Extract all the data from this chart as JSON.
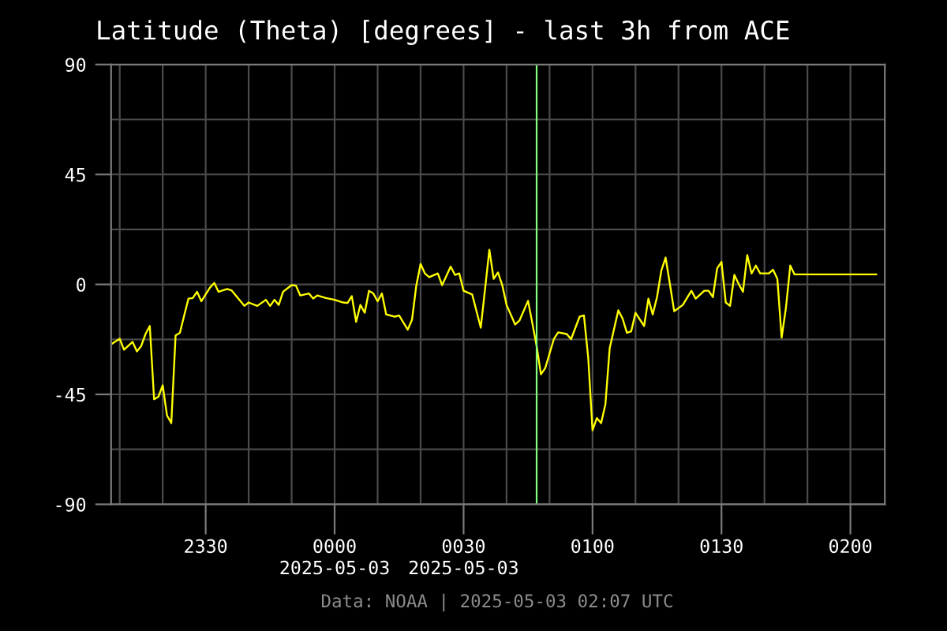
{
  "chart_data": {
    "type": "line",
    "title": "Latitude (Theta) [degrees] - last 3h from ACE",
    "x": [
      "2025-05-02T23:08",
      "2025-05-02T23:10",
      "2025-05-02T23:11",
      "2025-05-02T23:13",
      "2025-05-02T23:14",
      "2025-05-02T23:15",
      "2025-05-02T23:16",
      "2025-05-02T23:17",
      "2025-05-02T23:18",
      "2025-05-02T23:19",
      "2025-05-02T23:20",
      "2025-05-02T23:21",
      "2025-05-02T23:22",
      "2025-05-02T23:23",
      "2025-05-02T23:24",
      "2025-05-02T23:25",
      "2025-05-02T23:26",
      "2025-05-02T23:27",
      "2025-05-02T23:28",
      "2025-05-02T23:29",
      "2025-05-02T23:31",
      "2025-05-02T23:32",
      "2025-05-02T23:33",
      "2025-05-02T23:35",
      "2025-05-02T23:36",
      "2025-05-02T23:39",
      "2025-05-02T23:40",
      "2025-05-02T23:42",
      "2025-05-02T23:44",
      "2025-05-02T23:45",
      "2025-05-02T23:46",
      "2025-05-02T23:47",
      "2025-05-02T23:48",
      "2025-05-02T23:50",
      "2025-05-02T23:51",
      "2025-05-02T23:52",
      "2025-05-02T23:54",
      "2025-05-02T23:55",
      "2025-05-02T23:56",
      "2025-05-02T23:58",
      "2025-05-03T00:00",
      "2025-05-03T00:02",
      "2025-05-03T00:03",
      "2025-05-03T00:04",
      "2025-05-03T00:05",
      "2025-05-03T00:06",
      "2025-05-03T00:07",
      "2025-05-03T00:08",
      "2025-05-03T00:09",
      "2025-05-03T00:10",
      "2025-05-03T00:11",
      "2025-05-03T00:12",
      "2025-05-03T00:14",
      "2025-05-03T00:15",
      "2025-05-03T00:17",
      "2025-05-03T00:18",
      "2025-05-03T00:19",
      "2025-05-03T00:20",
      "2025-05-03T00:21",
      "2025-05-03T00:22",
      "2025-05-03T00:24",
      "2025-05-03T00:25",
      "2025-05-03T00:27",
      "2025-05-03T00:28",
      "2025-05-03T00:29",
      "2025-05-03T00:30",
      "2025-05-03T00:32",
      "2025-05-03T00:34",
      "2025-05-03T00:35",
      "2025-05-03T00:36",
      "2025-05-03T00:37",
      "2025-05-03T00:38",
      "2025-05-03T00:39",
      "2025-05-03T00:40",
      "2025-05-03T00:42",
      "2025-05-03T00:43",
      "2025-05-03T00:45",
      "2025-05-03T00:46",
      "2025-05-03T00:47",
      "2025-05-03T00:48",
      "2025-05-03T00:49",
      "2025-05-03T00:51",
      "2025-05-03T00:52",
      "2025-05-03T00:54",
      "2025-05-03T00:55",
      "2025-05-03T00:57",
      "2025-05-03T00:58",
      "2025-05-03T00:59",
      "2025-05-03T01:00",
      "2025-05-03T01:01",
      "2025-05-03T01:02",
      "2025-05-03T01:03",
      "2025-05-03T01:04",
      "2025-05-03T01:06",
      "2025-05-03T01:07",
      "2025-05-03T01:08",
      "2025-05-03T01:09",
      "2025-05-03T01:10",
      "2025-05-03T01:12",
      "2025-05-03T01:13",
      "2025-05-03T01:14",
      "2025-05-03T01:15",
      "2025-05-03T01:16",
      "2025-05-03T01:17",
      "2025-05-03T01:18",
      "2025-05-03T01:19",
      "2025-05-03T01:21",
      "2025-05-03T01:23",
      "2025-05-03T01:24",
      "2025-05-03T01:26",
      "2025-05-03T01:27",
      "2025-05-03T01:28",
      "2025-05-03T01:29",
      "2025-05-03T01:30",
      "2025-05-03T01:31",
      "2025-05-03T01:32",
      "2025-05-03T01:33",
      "2025-05-03T01:34",
      "2025-05-03T01:35",
      "2025-05-03T01:36",
      "2025-05-03T01:37",
      "2025-05-03T01:38",
      "2025-05-03T01:39",
      "2025-05-03T01:41",
      "2025-05-03T01:42",
      "2025-05-03T01:43",
      "2025-05-03T01:44",
      "2025-05-03T01:45",
      "2025-05-03T01:46",
      "2025-05-03T01:47",
      "2025-05-03T02:06"
    ],
    "series": [
      {
        "color": "#ffff00",
        "values": [
          -24.5,
          -22.2,
          -26.7,
          -23.5,
          -27.4,
          -25.2,
          -20.3,
          -17,
          -47,
          -46,
          -41.3,
          -53.6,
          -56.8,
          -20.9,
          -19.8,
          -12.7,
          -5.8,
          -5.6,
          -3,
          -6.9,
          -1.3,
          0.6,
          -3,
          -1.9,
          -2.4,
          -8.8,
          -7.4,
          -8.8,
          -6.3,
          -8.8,
          -6.3,
          -8.4,
          -3,
          -0.3,
          -0.5,
          -4.5,
          -3.7,
          -5.8,
          -4.5,
          -5.6,
          -6.3,
          -7.4,
          -7.6,
          -4.8,
          -15.3,
          -8.4,
          -11.6,
          -2.6,
          -3.7,
          -6.9,
          -3.7,
          -12.3,
          -13.2,
          -12.7,
          -18.5,
          -14.5,
          -0.5,
          8.4,
          4.5,
          3,
          4.5,
          -0.3,
          7.3,
          3.9,
          4.5,
          -2.6,
          -4.1,
          -17.7,
          -1.9,
          14.2,
          2.3,
          4.9,
          -0.3,
          -8.4,
          -16.4,
          -14.8,
          -6.7,
          -15.9,
          -25.2,
          -36.8,
          -34.2,
          -22.4,
          -19.6,
          -20.3,
          -22.4,
          -13.2,
          -12.7,
          -30,
          -59.7,
          -54.7,
          -56.8,
          -49,
          -26,
          -10.6,
          -14,
          -19.8,
          -19.2,
          -11.6,
          -17,
          -5.8,
          -12.3,
          -5.2,
          5.6,
          11,
          0.2,
          -11,
          -8.4,
          -2.6,
          -5.8,
          -2.6,
          -2.6,
          -5.2,
          6.6,
          9.2,
          -7.4,
          -8.8,
          3.9,
          0.2,
          -3,
          12,
          4.5,
          7.7,
          4.5,
          4.5,
          6,
          2.3,
          -21.8,
          -9.5,
          7.7,
          4.1,
          4.1
        ]
      }
    ],
    "xlim": [
      "2025-05-02T23:08",
      "2025-05-03T02:08"
    ],
    "xticks": [
      {
        "value": "2025-05-02T23:10",
        "label": null
      },
      {
        "value": "2025-05-02T23:20",
        "label": null
      },
      {
        "value": "2025-05-02T23:30",
        "label": "2330"
      },
      {
        "value": "2025-05-02T23:40",
        "label": null
      },
      {
        "value": "2025-05-02T23:50",
        "label": null
      },
      {
        "value": "2025-05-03T00:00",
        "label": "0000\n2025-05-03"
      },
      {
        "value": "2025-05-03T00:10",
        "label": null
      },
      {
        "value": "2025-05-03T00:20",
        "label": null
      },
      {
        "value": "2025-05-03T00:30",
        "label": "0030\n2025-05-03"
      },
      {
        "value": "2025-05-03T00:40",
        "label": null
      },
      {
        "value": "2025-05-03T00:50",
        "label": null
      },
      {
        "value": "2025-05-03T01:00",
        "label": "0100"
      },
      {
        "value": "2025-05-03T01:10",
        "label": null
      },
      {
        "value": "2025-05-03T01:20",
        "label": null
      },
      {
        "value": "2025-05-03T01:30",
        "label": "0130"
      },
      {
        "value": "2025-05-03T01:40",
        "label": null
      },
      {
        "value": "2025-05-03T01:50",
        "label": null
      },
      {
        "value": "2025-05-03T02:00",
        "label": "0200"
      }
    ],
    "ylim": [
      -90,
      90
    ],
    "yticks": [
      -90,
      {
        "value": -67.5,
        "label": null
      },
      -45,
      {
        "value": -22.5,
        "label": null
      },
      0,
      {
        "value": 22.5,
        "label": null
      },
      45,
      {
        "value": 67.5,
        "label": null
      },
      90
    ],
    "grid": true,
    "ref_lines": [
      {
        "axis": "x",
        "value": "2025-05-03T00:47",
        "color": "#80ff80"
      }
    ],
    "annotations": [
      "Data: NOAA | 2025-05-03 02:07 UTC"
    ]
  }
}
